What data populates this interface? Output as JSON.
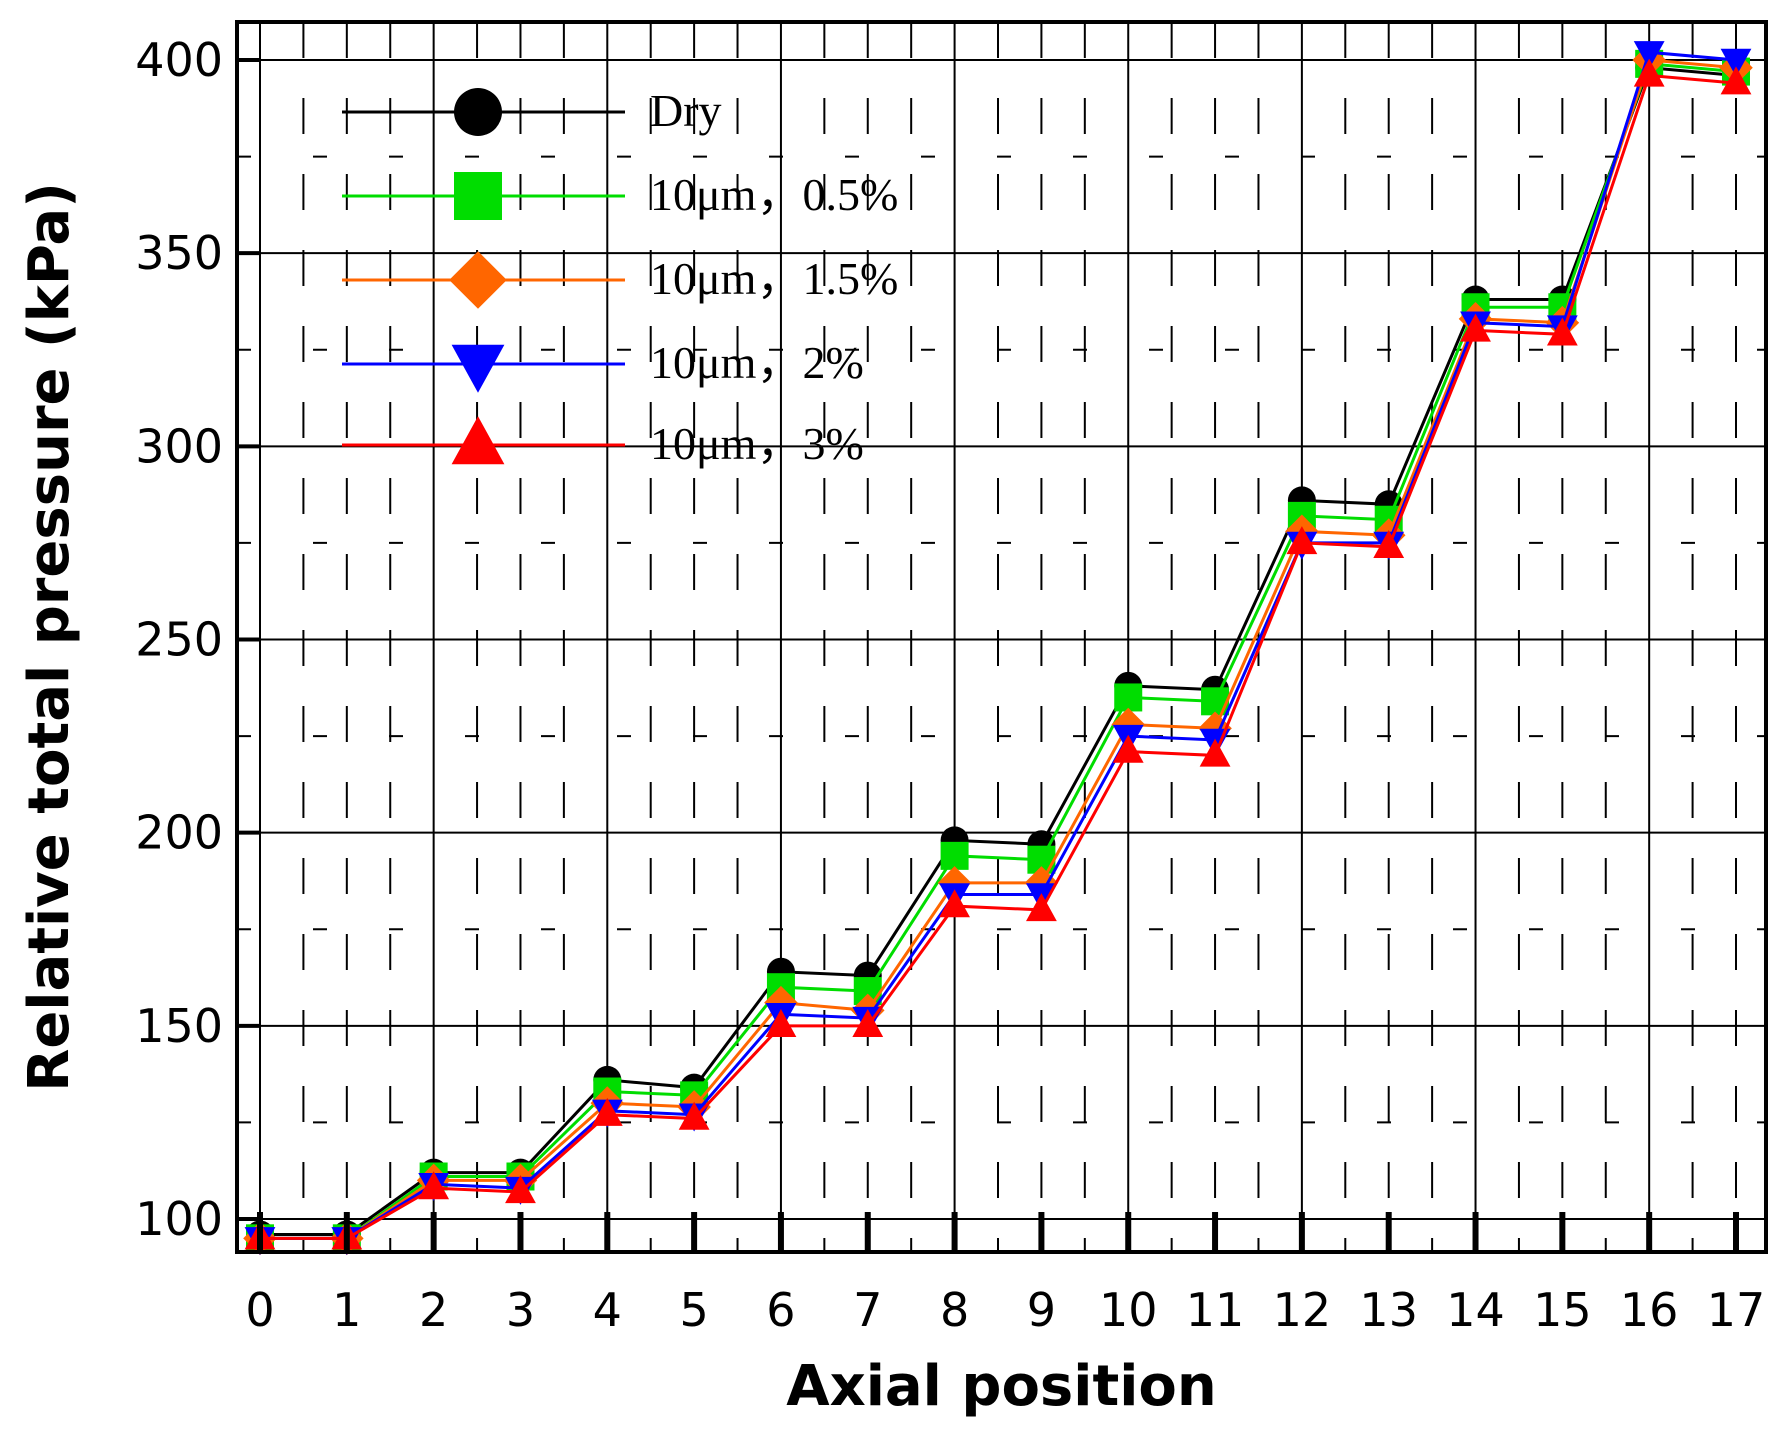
{
  "chart_data": {
    "type": "line",
    "title": "",
    "xlabel": "Axial position",
    "ylabel": "Relative total pressure (kPa)",
    "xlim": [
      0,
      17
    ],
    "ylim": [
      90,
      405
    ],
    "x_ticks": [
      0,
      1,
      2,
      3,
      4,
      5,
      6,
      7,
      8,
      9,
      10,
      11,
      12,
      13,
      14,
      15,
      16,
      17
    ],
    "y_ticks": [
      100,
      150,
      200,
      250,
      300,
      350,
      400
    ],
    "grid": true,
    "legend_position": "top-left",
    "series": [
      {
        "name": "Dry",
        "color": "#000000",
        "marker": "circle",
        "x": [
          0,
          1,
          2,
          3,
          4,
          5,
          6,
          7,
          8,
          9,
          10,
          11,
          12,
          13,
          14,
          15,
          16,
          17
        ],
        "values": [
          96,
          96,
          112,
          112,
          136,
          134,
          164,
          163,
          198,
          197,
          238,
          237,
          286,
          285,
          338,
          338,
          398,
          396
        ]
      },
      {
        "name": "10μm，0.5%",
        "color": "#00dd00",
        "marker": "square",
        "x": [
          0,
          1,
          2,
          3,
          4,
          5,
          6,
          7,
          8,
          9,
          10,
          11,
          12,
          13,
          14,
          15,
          16,
          17
        ],
        "values": [
          95,
          95,
          111,
          111,
          133,
          132,
          160,
          159,
          194,
          193,
          235,
          234,
          282,
          281,
          336,
          336,
          399,
          397
        ]
      },
      {
        "name": "10μm，1.5%",
        "color": "#ff6600",
        "marker": "diamond",
        "x": [
          0,
          1,
          2,
          3,
          4,
          5,
          6,
          7,
          8,
          9,
          10,
          11,
          12,
          13,
          14,
          15,
          16,
          17
        ],
        "values": [
          95,
          95,
          110,
          110,
          130,
          129,
          156,
          154,
          187,
          187,
          228,
          227,
          278,
          277,
          333,
          332,
          400,
          398
        ]
      },
      {
        "name": "10μm，2%",
        "color": "#0000ff",
        "marker": "triangle-down",
        "x": [
          0,
          1,
          2,
          3,
          4,
          5,
          6,
          7,
          8,
          9,
          10,
          11,
          12,
          13,
          14,
          15,
          16,
          17
        ],
        "values": [
          95,
          95,
          109,
          108,
          128,
          127,
          153,
          152,
          184,
          184,
          225,
          224,
          275,
          275,
          332,
          331,
          402,
          400
        ]
      },
      {
        "name": "10μm，3%",
        "color": "#ff0000",
        "marker": "triangle-up",
        "x": [
          0,
          1,
          2,
          3,
          4,
          5,
          6,
          7,
          8,
          9,
          10,
          11,
          12,
          13,
          14,
          15,
          16,
          17
        ],
        "values": [
          95,
          95,
          108,
          107,
          127,
          126,
          150,
          150,
          181,
          180,
          221,
          220,
          275,
          274,
          330,
          329,
          396,
          394
        ]
      }
    ]
  }
}
